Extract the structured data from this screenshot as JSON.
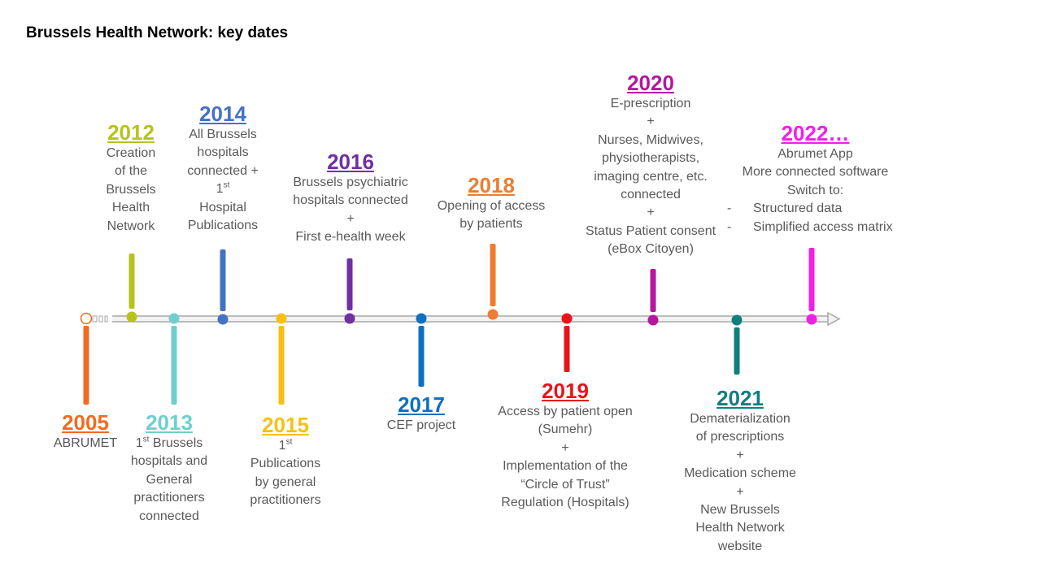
{
  "title": "Brussels Health Network: key dates",
  "events": {
    "e2005": {
      "year": "2005",
      "color": "#f26b21",
      "lines": [
        "ABRUMET"
      ]
    },
    "e2012": {
      "year": "2012",
      "color": "#b7c31b",
      "lines": [
        "Creation",
        "of the",
        "Brussels",
        "Health",
        "Network"
      ]
    },
    "e2013": {
      "year": "2013",
      "color": "#6fcfcf",
      "lines": [
        "Brussels",
        "hospitals and",
        "General",
        "practitioners",
        "connected"
      ],
      "sup": "st",
      "sup_pre": "1"
    },
    "e2014": {
      "year": "2014",
      "color": "#4472c4",
      "lines": [
        "All Brussels",
        "hospitals",
        "connected +",
        "Hospital",
        "Publications"
      ],
      "sup": "st",
      "sup_pre": "1"
    },
    "e2015": {
      "year": "2015",
      "color": "#f9c011",
      "lines": [
        "Publications",
        "by general",
        "practitioners"
      ],
      "sup": "st",
      "sup_pre": "1"
    },
    "e2016": {
      "year": "2016",
      "color": "#7030a0",
      "lines": [
        "Brussels psychiatric",
        "hospitals connected",
        "+",
        "First e-health week"
      ]
    },
    "e2017": {
      "year": "2017",
      "color": "#0f70c0",
      "lines": [
        "CEF project"
      ]
    },
    "e2018": {
      "year": "2018",
      "color": "#ed7d31",
      "lines": [
        "Opening of access",
        "by patients"
      ]
    },
    "e2019": {
      "year": "2019",
      "color": "#e8141a",
      "lines": [
        "Access by patient open",
        "(Sumehr)",
        "+",
        "Implementation of the",
        "“Circle of Trust”",
        "Regulation (Hospitals)"
      ]
    },
    "e2020": {
      "year": "2020",
      "color": "#b4189e",
      "lines": [
        "E-prescription",
        "+",
        "Nurses, Midwives,",
        "physiotherapists,",
        "imaging centre, etc.",
        "connected",
        "+",
        "Status Patient consent",
        "(eBox Citoyen)"
      ]
    },
    "e2021": {
      "year": "2021",
      "color": "#0f7f7f",
      "lines": [
        "Dematerialization",
        "of prescriptions",
        "+",
        "Medication scheme",
        "+",
        "New Brussels",
        "Health Network",
        "website"
      ]
    },
    "e2022": {
      "year": "2022…",
      "color": "#f020e8",
      "lines": [
        "Abrumet App",
        "More connected software",
        "Switch to:",
        "Structured data",
        "Simplified access matrix"
      ],
      "bullet": "-"
    }
  }
}
